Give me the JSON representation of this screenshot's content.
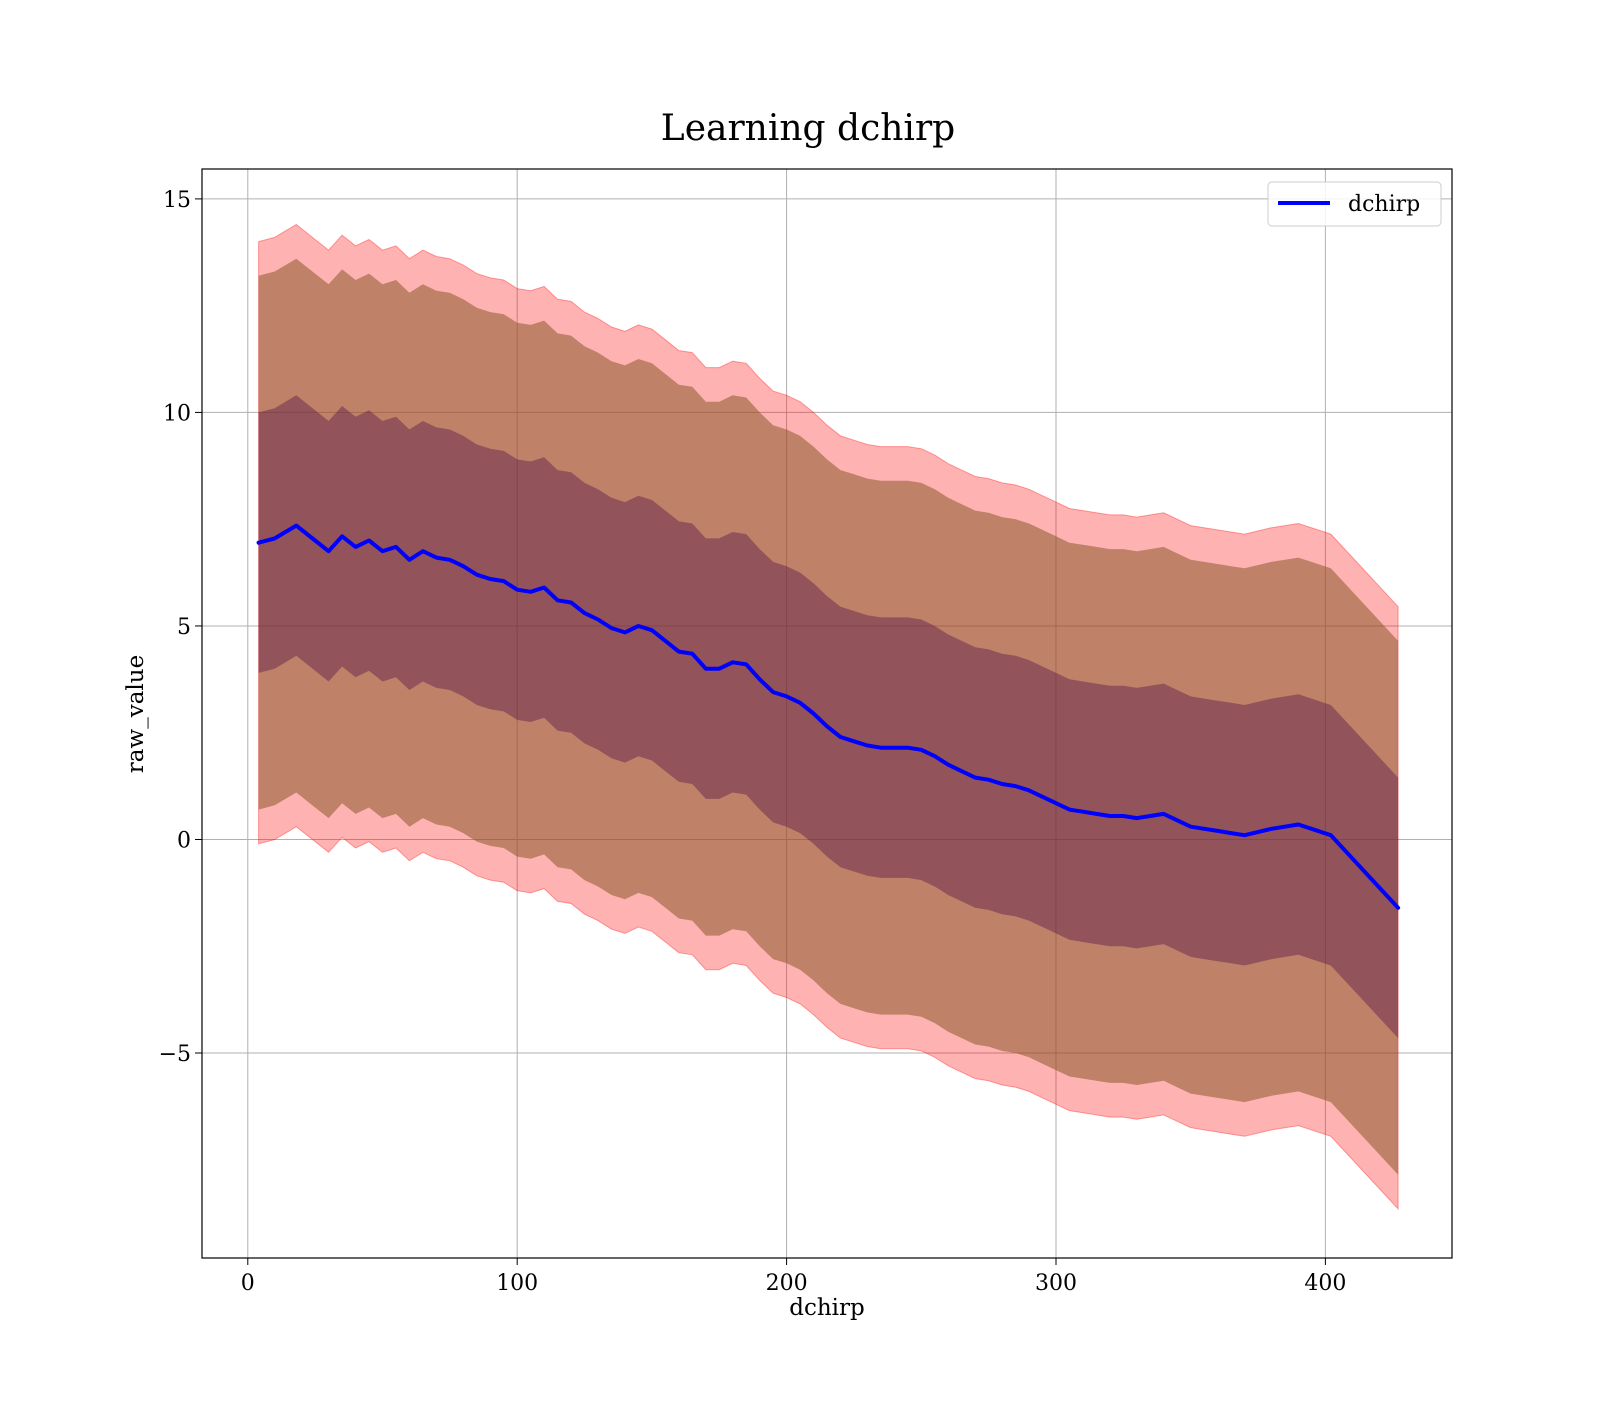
{
  "chart_data": {
    "type": "line",
    "title": "Learning dchirp",
    "xlabel": "dchirp",
    "ylabel": "raw_value",
    "xlim": [
      -17,
      447
    ],
    "ylim": [
      -9.8,
      15.7
    ],
    "xticks": [
      0,
      100,
      200,
      300,
      400
    ],
    "xtick_labels": [
      "0",
      "100",
      "200",
      "300",
      "400"
    ],
    "yticks": [
      -5,
      0,
      5,
      10,
      15
    ],
    "ytick_labels": [
      "−5",
      "0",
      "5",
      "10",
      "15"
    ],
    "grid": true,
    "legend": {
      "position": "top-right",
      "entries": [
        "dchirp"
      ]
    },
    "colors": {
      "line": "#0000ff",
      "band_outer": "#ff0000",
      "band_middle": "#8b5a2b",
      "band_inner": "#5a1a4a"
    },
    "x": [
      4,
      10,
      18,
      25,
      30,
      35,
      40,
      45,
      50,
      55,
      60,
      65,
      70,
      75,
      80,
      85,
      90,
      95,
      100,
      105,
      110,
      115,
      120,
      125,
      130,
      135,
      140,
      145,
      150,
      155,
      160,
      165,
      170,
      175,
      180,
      185,
      190,
      195,
      200,
      205,
      210,
      215,
      220,
      225,
      230,
      235,
      240,
      245,
      250,
      255,
      260,
      265,
      270,
      275,
      280,
      285,
      290,
      295,
      300,
      305,
      310,
      315,
      320,
      325,
      330,
      335,
      340,
      345,
      350,
      355,
      360,
      365,
      370,
      380,
      390,
      402,
      427
    ],
    "series": [
      {
        "name": "dchirp",
        "values": [
          6.95,
          7.05,
          7.35,
          7.0,
          6.75,
          7.1,
          6.85,
          7.0,
          6.75,
          6.85,
          6.55,
          6.75,
          6.6,
          6.55,
          6.4,
          6.2,
          6.1,
          6.05,
          5.85,
          5.8,
          5.9,
          5.6,
          5.55,
          5.3,
          5.15,
          4.95,
          4.85,
          5.0,
          4.9,
          4.65,
          4.4,
          4.35,
          4.0,
          4.0,
          4.15,
          4.1,
          3.75,
          3.45,
          3.35,
          3.2,
          2.95,
          2.65,
          2.4,
          2.3,
          2.2,
          2.15,
          2.15,
          2.15,
          2.1,
          1.95,
          1.75,
          1.6,
          1.45,
          1.4,
          1.3,
          1.25,
          1.15,
          1.0,
          0.85,
          0.7,
          0.65,
          0.6,
          0.55,
          0.55,
          0.5,
          0.55,
          0.6,
          0.45,
          0.3,
          0.25,
          0.2,
          0.15,
          0.1,
          0.25,
          0.35,
          0.1,
          -1.6
        ]
      }
    ],
    "bands": {
      "inner_halfwidth": 3.05,
      "middle_halfwidth": 6.25,
      "outer_halfwidth": 7.05
    }
  }
}
